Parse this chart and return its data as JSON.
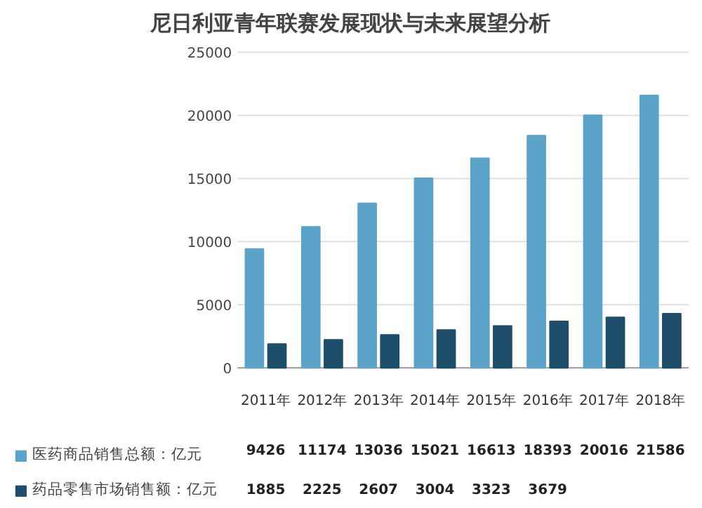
{
  "chart_data": {
    "type": "bar",
    "title": "尼日利亚青年联赛发展现状与未来展望分析",
    "categories": [
      "2011年",
      "2012年",
      "2013年",
      "2014年",
      "2015年",
      "2016年",
      "2017年",
      "2018年"
    ],
    "series": [
      {
        "name": "医药商品销售总额：亿元",
        "color": "#5ba3c9",
        "values": [
          9426,
          11174,
          13036,
          15021,
          16613,
          18393,
          20016,
          21586
        ],
        "value_labels": [
          "9426",
          "11174",
          "13036",
          "15021",
          "16613",
          "18393",
          "20016",
          "21586"
        ]
      },
      {
        "name": "药品零售市场销售额：亿元",
        "color": "#1f4e6b",
        "values": [
          1885,
          2225,
          2607,
          3004,
          3323,
          3679,
          4000,
          4300
        ],
        "value_labels": [
          "1885",
          "2225",
          "2607",
          "3004",
          "3323",
          "3679",
          null,
          null
        ]
      }
    ],
    "ylim": [
      0,
      25000
    ],
    "yticks": [
      0,
      5000,
      10000,
      15000,
      20000,
      25000
    ],
    "grid": "y",
    "legend": "bottom left"
  }
}
